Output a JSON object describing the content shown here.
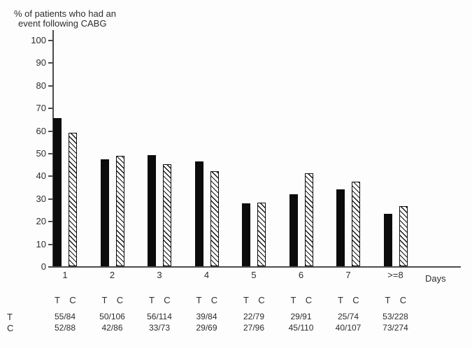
{
  "chart_data": {
    "type": "bar",
    "title": "% of patients who had an event following CABG",
    "title_lines": [
      "% of patients who had an",
      "event following CABG"
    ],
    "xlabel": "Days",
    "ylabel": "% of patients who had an event following CABG",
    "ylim": [
      0,
      100
    ],
    "yticks": [
      0,
      10,
      20,
      30,
      40,
      50,
      60,
      70,
      80,
      90,
      100
    ],
    "grid": false,
    "legend_position": "none",
    "categories": [
      "1",
      "2",
      "3",
      "4",
      "5",
      "6",
      "7",
      ">=8"
    ],
    "group_sublabels": [
      "T",
      "C"
    ],
    "series": [
      {
        "name": "T",
        "style": "solid",
        "color": "#0c0c0c",
        "values": [
          65.5,
          47.2,
          49.1,
          46.4,
          27.8,
          31.9,
          33.8,
          23.2
        ],
        "fractions": [
          "55/84",
          "50/106",
          "56/114",
          "39/84",
          "22/79",
          "29/91",
          "25/74",
          "53/228"
        ]
      },
      {
        "name": "C",
        "style": "hatched",
        "color": "#ffffff",
        "hatch_color": "#141414",
        "values": [
          59.1,
          48.8,
          45.2,
          42.0,
          28.1,
          40.9,
          37.4,
          26.6
        ],
        "fractions": [
          "52/88",
          "42/86",
          "33/73",
          "29/69",
          "27/96",
          "45/110",
          "40/107",
          "73/274"
        ]
      }
    ],
    "counts_table": {
      "row_labels": [
        "T",
        "C"
      ],
      "rows": [
        [
          "55/84",
          "50/106",
          "56/114",
          "39/84",
          "22/79",
          "29/91",
          "25/74",
          "53/228"
        ],
        [
          "52/88",
          "42/86",
          "33/73",
          "29/69",
          "27/96",
          "45/110",
          "40/107",
          "73/274"
        ]
      ]
    }
  }
}
